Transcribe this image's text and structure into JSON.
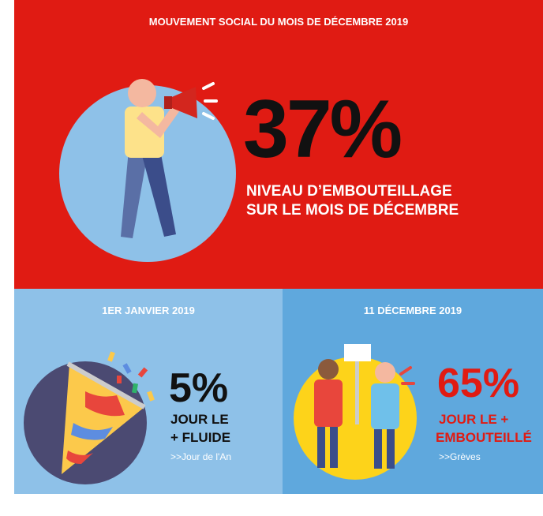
{
  "header": {
    "title": "MOUVEMENT SOCIAL DU MOIS DE DÉCEMBRE 2019"
  },
  "main": {
    "stat": "37%",
    "caption": [
      "NIVEAU D’EMBOUTEILLAGE",
      "SUR LE MOIS DE DÉCEMBRE"
    ]
  },
  "cards": [
    {
      "date": "1ER JANVIER 2019",
      "stat": "5%",
      "caption": [
        "JOUR LE",
        "+ FLUIDE"
      ],
      "note": ">>Jour de l'An"
    },
    {
      "date": "11 DÉCEMBRE 2019",
      "stat": "65%",
      "caption": [
        "JOUR LE +",
        "EMBOUTEILLÉ"
      ],
      "note": ">>Grèves"
    }
  ]
}
